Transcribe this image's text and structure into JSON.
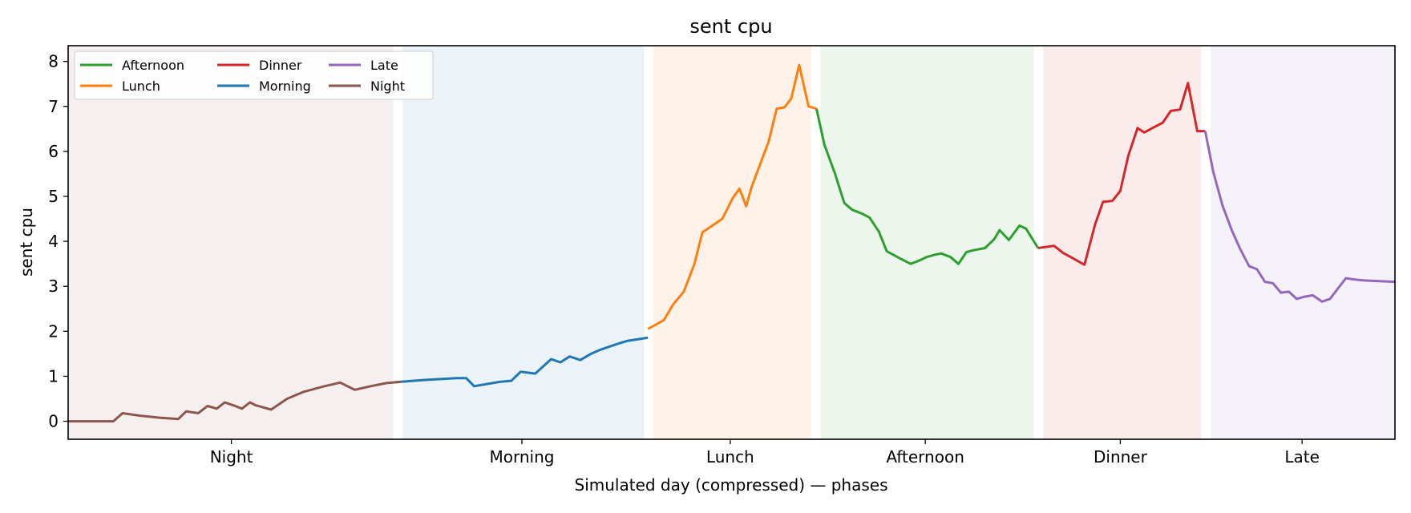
{
  "chart_data": {
    "type": "line",
    "title": "sent cpu",
    "xlabel": "Simulated day (compressed) — phases",
    "ylabel": "sent cpu",
    "xlim": [
      0,
      1
    ],
    "ylim": [
      -0.4,
      8.35
    ],
    "yticks": [
      0,
      1,
      2,
      3,
      4,
      5,
      6,
      7,
      8
    ],
    "grid": false,
    "legend": {
      "placement": "top-left",
      "columns": 3
    },
    "legend_order": [
      "Afternoon",
      "Dinner",
      "Late",
      "Lunch",
      "Morning",
      "Night"
    ],
    "phase_bands": [
      {
        "name": "Night",
        "start": 0.0,
        "end": 0.245,
        "label_x": 0.123,
        "color": "#8c564b"
      },
      {
        "name": "Morning",
        "start": 0.252,
        "end": 0.434,
        "label_x": 0.342,
        "color": "#1f77b4"
      },
      {
        "name": "Lunch",
        "start": 0.441,
        "end": 0.56,
        "label_x": 0.499,
        "color": "#ff7f0e"
      },
      {
        "name": "Afternoon",
        "start": 0.567,
        "end": 0.728,
        "label_x": 0.646,
        "color": "#2ca02c"
      },
      {
        "name": "Dinner",
        "start": 0.735,
        "end": 0.854,
        "label_x": 0.793,
        "color": "#d62728"
      },
      {
        "name": "Late",
        "start": 0.861,
        "end": 1.0,
        "label_x": 0.93,
        "color": "#9467bd"
      }
    ],
    "series": [
      {
        "name": "Night",
        "color": "#8c564b",
        "x": [
          0.0,
          0.034,
          0.041,
          0.055,
          0.069,
          0.083,
          0.089,
          0.098,
          0.105,
          0.112,
          0.118,
          0.125,
          0.131,
          0.137,
          0.141,
          0.153,
          0.165,
          0.177,
          0.192,
          0.205,
          0.216,
          0.228,
          0.24,
          0.251
        ],
        "y": [
          0,
          0,
          0.18,
          0.12,
          0.08,
          0.05,
          0.22,
          0.18,
          0.34,
          0.28,
          0.42,
          0.35,
          0.28,
          0.42,
          0.36,
          0.26,
          0.5,
          0.65,
          0.77,
          0.86,
          0.7,
          0.78,
          0.85,
          0.88
        ]
      },
      {
        "name": "Morning",
        "color": "#1f77b4",
        "x": [
          0.251,
          0.27,
          0.293,
          0.3,
          0.306,
          0.32,
          0.326,
          0.334,
          0.341,
          0.347,
          0.352,
          0.358,
          0.364,
          0.371,
          0.378,
          0.386,
          0.394,
          0.402,
          0.41,
          0.416,
          0.422,
          0.431,
          0.437
        ],
        "y": [
          0.88,
          0.92,
          0.96,
          0.96,
          0.78,
          0.85,
          0.88,
          0.9,
          1.1,
          1.08,
          1.06,
          1.22,
          1.38,
          1.31,
          1.44,
          1.36,
          1.5,
          1.6,
          1.68,
          1.74,
          1.79,
          1.83,
          1.86
        ]
      },
      {
        "name": "Lunch",
        "color": "#ff7f0e",
        "x": [
          0.437,
          0.449,
          0.456,
          0.464,
          0.472,
          0.478,
          0.487,
          0.493,
          0.501,
          0.506,
          0.511,
          0.515,
          0.522,
          0.528,
          0.534,
          0.54,
          0.545,
          0.551,
          0.558,
          0.564
        ],
        "y": [
          2.05,
          2.25,
          2.6,
          2.88,
          3.5,
          4.2,
          4.38,
          4.5,
          4.97,
          5.17,
          4.78,
          5.2,
          5.75,
          6.22,
          6.95,
          6.98,
          7.18,
          7.92,
          7.0,
          6.95
        ]
      },
      {
        "name": "Afternoon",
        "color": "#2ca02c",
        "x": [
          0.564,
          0.57,
          0.578,
          0.585,
          0.591,
          0.598,
          0.604,
          0.611,
          0.617,
          0.627,
          0.635,
          0.642,
          0.647,
          0.653,
          0.658,
          0.665,
          0.671,
          0.677,
          0.682,
          0.691,
          0.698,
          0.702,
          0.709,
          0.717,
          0.722,
          0.731
        ],
        "y": [
          6.95,
          6.15,
          5.5,
          4.85,
          4.7,
          4.62,
          4.53,
          4.22,
          3.78,
          3.62,
          3.5,
          3.58,
          3.65,
          3.7,
          3.73,
          3.65,
          3.5,
          3.76,
          3.8,
          3.85,
          4.05,
          4.25,
          4.03,
          4.35,
          4.28,
          3.85
        ]
      },
      {
        "name": "Dinner",
        "color": "#d62728",
        "x": [
          0.731,
          0.743,
          0.75,
          0.757,
          0.766,
          0.774,
          0.78,
          0.787,
          0.793,
          0.799,
          0.806,
          0.811,
          0.818,
          0.825,
          0.831,
          0.838,
          0.844,
          0.851,
          0.857
        ],
        "y": [
          3.85,
          3.9,
          3.74,
          3.63,
          3.48,
          4.38,
          4.88,
          4.9,
          5.12,
          5.9,
          6.52,
          6.42,
          6.53,
          6.64,
          6.9,
          6.93,
          7.52,
          6.45,
          6.45
        ]
      },
      {
        "name": "Late",
        "color": "#9467bd",
        "x": [
          0.857,
          0.863,
          0.87,
          0.877,
          0.883,
          0.89,
          0.896,
          0.902,
          0.908,
          0.914,
          0.92,
          0.926,
          0.932,
          0.938,
          0.945,
          0.951,
          0.957,
          0.963,
          0.97,
          0.977,
          1.0
        ],
        "y": [
          6.45,
          5.55,
          4.8,
          4.25,
          3.85,
          3.45,
          3.38,
          3.1,
          3.07,
          2.86,
          2.88,
          2.72,
          2.77,
          2.8,
          2.66,
          2.72,
          2.95,
          3.18,
          3.15,
          3.13,
          3.1
        ]
      }
    ]
  }
}
